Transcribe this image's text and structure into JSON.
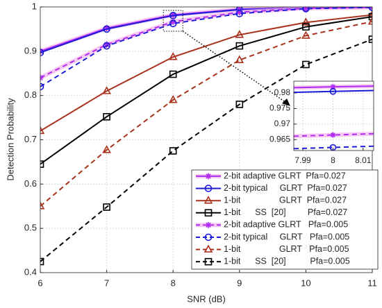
{
  "chart_data": [
    {
      "type": "line",
      "x_label": "SNR (dB)",
      "y_label": "Detection Probability",
      "x": [
        6,
        7,
        8,
        9,
        10,
        11
      ],
      "xlim": [
        6,
        11
      ],
      "xticks": [
        6,
        7,
        8,
        9,
        10,
        11
      ],
      "ylim": [
        0.4,
        1
      ],
      "yticks": [
        0.4,
        0.5,
        0.6,
        0.7,
        0.8,
        0.9,
        1
      ],
      "grid": true,
      "legend": "lower right",
      "series": [
        {
          "name": "2-bit adaptive GLRT  Pfa=0.027",
          "color": "#b02cf0",
          "marker": "star",
          "linestyle": "solid",
          "values": [
            0.9,
            0.952,
            0.982,
            0.995,
            0.999,
            1.0
          ]
        },
        {
          "name": "2-bit typical     GLRT  Pfa=0.027",
          "color": "#1c1cd8",
          "marker": "circle",
          "linestyle": "solid",
          "values": [
            0.897,
            0.95,
            0.9805,
            0.994,
            0.998,
            0.999
          ]
        },
        {
          "name": "1-bit                GLRT  Pfa=0.027",
          "color": "#a8321c",
          "marker": "triangle",
          "linestyle": "solid",
          "values": [
            0.72,
            0.81,
            0.887,
            0.937,
            0.965,
            0.982
          ]
        },
        {
          "name": "1-bit      SS  [20]         Pfa=0.027",
          "color": "#000000",
          "marker": "square",
          "linestyle": "solid",
          "values": [
            0.645,
            0.752,
            0.848,
            0.912,
            0.955,
            0.978
          ]
        },
        {
          "name": "2-bit adaptive GLRT   Pfa=0.005",
          "color": "#b02cf0",
          "marker": "star",
          "linestyle": "dashed",
          "values": [
            0.84,
            0.915,
            0.9665,
            0.988,
            0.997,
            0.999
          ]
        },
        {
          "name": "2-bit typical     GLRT   Pfa=0.005",
          "color": "#1c1cd8",
          "marker": "circle",
          "linestyle": "dashed",
          "values": [
            0.82,
            0.912,
            0.9625,
            0.985,
            0.996,
            0.999
          ]
        },
        {
          "name": "1-bit                GLRT   Pfa=0.005",
          "color": "#a8321c",
          "marker": "triangle",
          "linestyle": "dashed",
          "values": [
            0.55,
            0.677,
            0.79,
            0.88,
            0.935,
            0.967
          ]
        },
        {
          "name": "1-bit      SS  [20]          Pfa=0.005",
          "color": "#000000",
          "marker": "square",
          "linestyle": "dashed",
          "values": [
            0.425,
            0.548,
            0.675,
            0.78,
            0.87,
            0.927
          ]
        }
      ]
    },
    {
      "type": "line",
      "x": [
        7.987,
        8,
        8.0135
      ],
      "xlim": [
        7.987,
        8.0135
      ],
      "xticks": [
        7.99,
        8,
        8.01
      ],
      "ylim": [
        0.9615,
        0.9838
      ],
      "yticks": [
        0.965,
        0.97,
        0.975,
        0.98
      ],
      "grid": true,
      "series": [
        {
          "color": "#b02cf0",
          "marker": "star",
          "linestyle": "solid",
          "values": [
            0.9817,
            0.982,
            0.9822
          ]
        },
        {
          "color": "#1c1cd8",
          "marker": "circle",
          "linestyle": "solid",
          "values": [
            0.9802,
            0.9805,
            0.9808
          ]
        },
        {
          "color": "#b02cf0",
          "marker": "star",
          "linestyle": "dashed",
          "values": [
            0.9661,
            0.9665,
            0.9669
          ]
        },
        {
          "color": "#1c1cd8",
          "marker": "circle",
          "linestyle": "dashed",
          "values": [
            0.9621,
            0.9625,
            0.9629
          ]
        }
      ]
    }
  ]
}
